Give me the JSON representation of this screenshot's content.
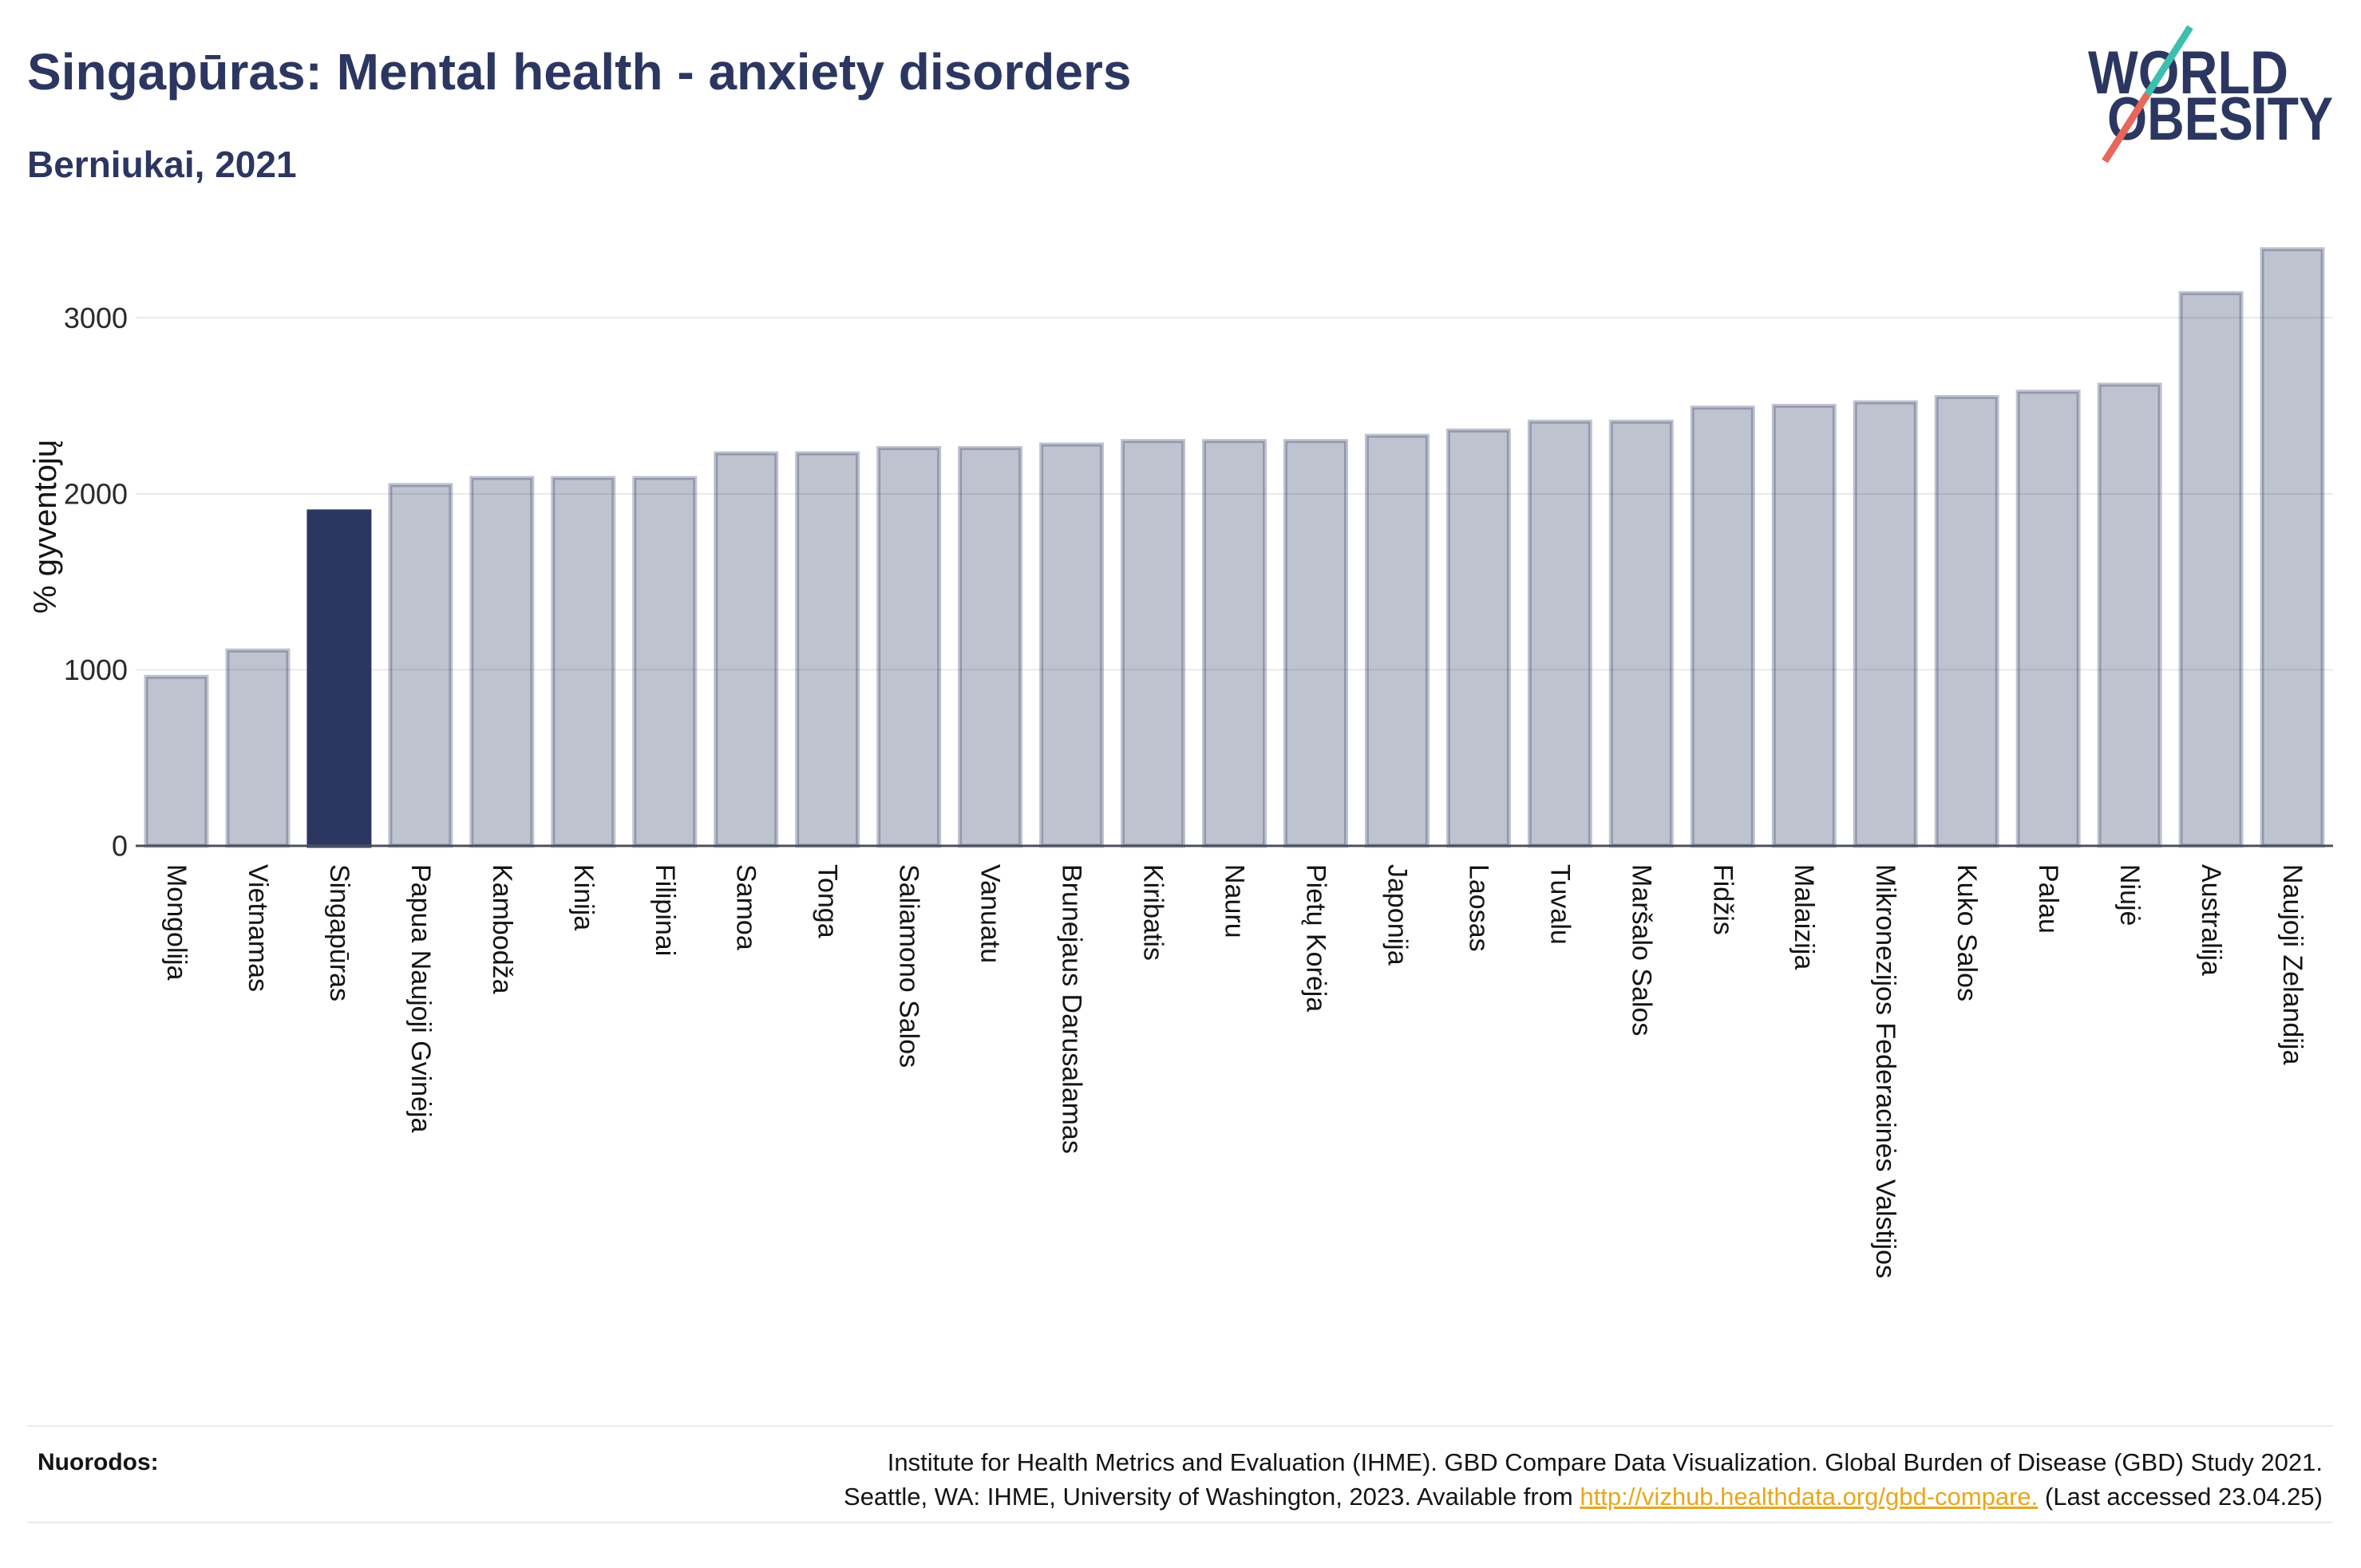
{
  "logo": {
    "line1": "WORLD",
    "line2": "OBESITY",
    "colors": {
      "text": "#2c3761",
      "slash_top": "#3cbfae",
      "slash_bottom": "#e8665c"
    }
  },
  "chart_data": {
    "type": "bar",
    "title": "Singapūras: Mental health - anxiety disorders",
    "subtitle": "Berniukai, 2021",
    "xlabel": "",
    "ylabel": "% gyventojų",
    "ylim": [
      0,
      3500
    ],
    "yticks": [
      0,
      1000,
      2000,
      3000
    ],
    "grid": true,
    "legend": "none",
    "highlight_index": 2,
    "categories": [
      "Mongolija",
      "Vietnamas",
      "Singapūras",
      "Papua Naujoji Gvinėja",
      "Kambodža",
      "Kinija",
      "Filipinai",
      "Samoa",
      "Tonga",
      "Saliamono Salos",
      "Vanuatu",
      "Brunejaus Darusalamas",
      "Kiribatis",
      "Nauru",
      "Pietų Korėja",
      "Japonija",
      "Laosas",
      "Tuvalu",
      "Maršalo Salos",
      "Fidžis",
      "Malaizija",
      "Mikronezijos Federacinės Valstijos",
      "Kuko Salos",
      "Palau",
      "Niujė",
      "Australija",
      "Naujoji Zelandija"
    ],
    "values": [
      960,
      1110,
      1900,
      2050,
      2090,
      2090,
      2090,
      2230,
      2230,
      2260,
      2260,
      2280,
      2300,
      2300,
      2300,
      2330,
      2360,
      2410,
      2410,
      2490,
      2500,
      2520,
      2550,
      2580,
      2620,
      3140,
      3390
    ],
    "colors": {
      "bar": "#2c3761",
      "highlight": "#2c3761",
      "grid": "#e9e9e9",
      "axis": "#4b4f5c",
      "title": "#2c3761"
    }
  },
  "footer": {
    "label": "Nuorodos:",
    "line1": "Institute for Health Metrics and Evaluation (IHME). GBD Compare Data Visualization. Global Burden of Disease (GBD) Study 2021.",
    "line2_prefix": "Seattle, WA: IHME, University of Washington, 2023. Available from",
    "link": "http://vizhub.healthdata.org/gbd-compare.",
    "line2_suffix": "(Last accessed 23.04.25)",
    "link_color": "#e8a71c"
  }
}
